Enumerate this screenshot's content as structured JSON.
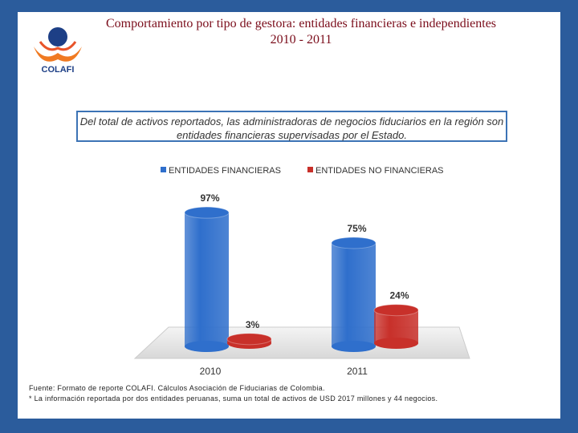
{
  "logo": "COLAFI",
  "chart_data": {
    "type": "bar",
    "title": "Comportamiento por  tipo de gestora: entidades financieras e independientes",
    "subtitle": "2010 - 2011",
    "note": "Del total de activos reportados, las administradoras de negocios fiduciarios en la región son entidades financieras supervisadas por el Estado.",
    "categories": [
      "2010",
      "2011"
    ],
    "series": [
      {
        "name": "ENTIDADES FINANCIERAS",
        "color": "#2f6fcc",
        "values": [
          97,
          75
        ],
        "value_labels": [
          "97%",
          "75%"
        ]
      },
      {
        "name": "ENTIDADES NO FINANCIERAS",
        "color": "#c8302a",
        "values": [
          3,
          24
        ],
        "value_labels": [
          "3%",
          "24%"
        ]
      }
    ],
    "sources": [
      "Fuente: Formato de reporte COLAFI. Cálculos Asociación de Fiduciarias de Colombia.",
      "* La información reportada por dos entidades peruanas, suma un total de activos de USD 2017 millones y 44 negocios."
    ]
  }
}
